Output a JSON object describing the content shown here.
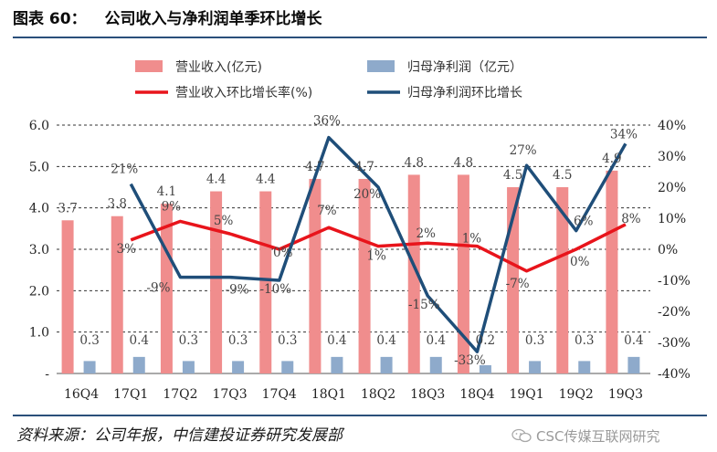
{
  "header": {
    "figure_label": "图表 60：",
    "title": "公司收入与净利润单季环比增长"
  },
  "footer": {
    "source": "资料来源：公司年报，中信建投证券研究发展部",
    "watermark": "CSC传媒互联网研究"
  },
  "chart_data": {
    "type": "bar",
    "title": "公司收入与净利润单季环比增长",
    "categories": [
      "16Q4",
      "17Q1",
      "17Q2",
      "17Q3",
      "17Q4",
      "18Q1",
      "18Q2",
      "18Q3",
      "18Q4",
      "19Q1",
      "19Q2",
      "19Q3"
    ],
    "left_axis": {
      "ylim": [
        0,
        6
      ],
      "ticks": [
        0,
        1,
        2,
        3,
        4,
        5,
        6
      ],
      "tick_labels": [
        "-",
        "1.0",
        "2.0",
        "3.0",
        "4.0",
        "5.0",
        "6.0"
      ]
    },
    "right_axis": {
      "ylim": [
        -40,
        40
      ],
      "ticks": [
        -40,
        -30,
        -20,
        -10,
        0,
        10,
        20,
        30,
        40
      ],
      "tick_labels": [
        "-40%",
        "-30%",
        "-20%",
        "-10%",
        "0%",
        "10%",
        "20%",
        "30%",
        "40%"
      ]
    },
    "grid": "dashed horizontal at left-axis ticks",
    "series": [
      {
        "name": "营业收入(亿元)",
        "kind": "bar",
        "axis": "left",
        "color": "#f08d8d",
        "values": [
          3.7,
          3.8,
          4.1,
          4.4,
          4.4,
          4.7,
          4.7,
          4.8,
          4.8,
          4.5,
          4.5,
          4.9
        ],
        "labels": [
          "3.7",
          "3.8",
          "4.1",
          "4.4",
          "4.4",
          "4.7",
          "4.7",
          "4.8",
          "4.8",
          "4.5",
          "4.5",
          "4.9"
        ]
      },
      {
        "name": "归母净利润（亿元）",
        "kind": "bar",
        "axis": "left",
        "color": "#8eaacb",
        "values": [
          0.3,
          0.4,
          0.3,
          0.3,
          0.3,
          0.4,
          0.4,
          0.4,
          0.2,
          0.3,
          0.3,
          0.4
        ],
        "labels": [
          "0.3",
          "0.4",
          "0.3",
          "0.3",
          "0.3",
          "0.4",
          "0.4",
          "0.4",
          "0.2",
          "0.3",
          "0.3",
          "0.4"
        ]
      },
      {
        "name": "营业收入环比增长率(%)",
        "kind": "line",
        "axis": "right",
        "color": "#e8141b",
        "values": [
          null,
          3,
          9,
          5,
          0,
          7,
          1,
          2,
          1,
          -7,
          0,
          8
        ],
        "labels": [
          "",
          "3%",
          "9%",
          "5%",
          "0%",
          "7%",
          "1%",
          "2%",
          "1%",
          "-7%",
          "0%",
          "8%"
        ]
      },
      {
        "name": "归母净利润环比增长",
        "kind": "line",
        "axis": "right",
        "color": "#1f4e79",
        "values": [
          null,
          21,
          -9,
          -9,
          -10,
          36,
          20,
          -15,
          -33,
          27,
          6,
          34
        ],
        "labels": [
          "",
          "21%",
          "-9%",
          "-9%",
          "-10%",
          "36%",
          "20%",
          "-15%",
          "-33%",
          "27%",
          "6%",
          "34%"
        ]
      }
    ]
  }
}
